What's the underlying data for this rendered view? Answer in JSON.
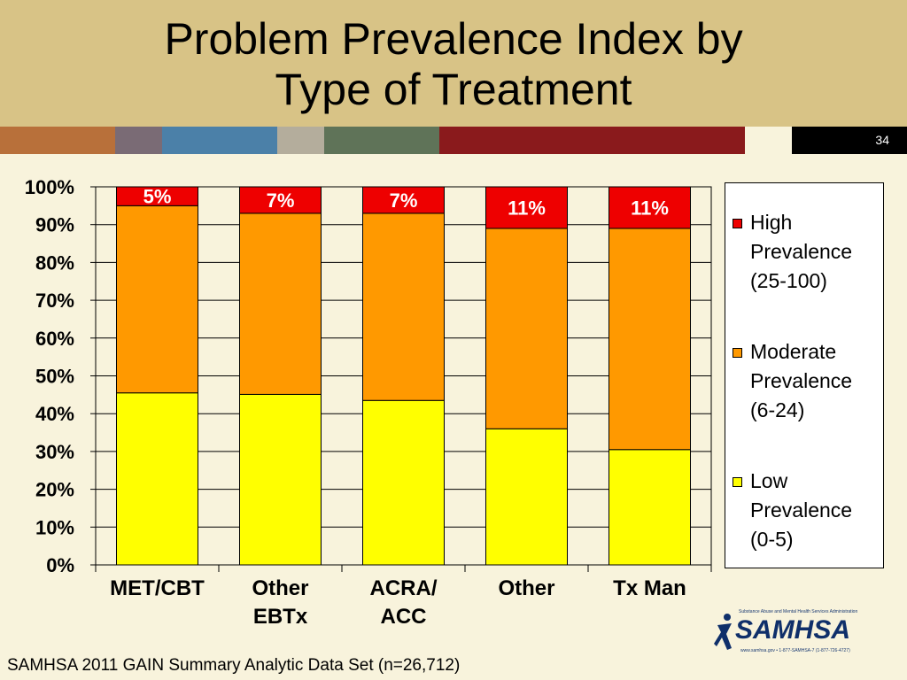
{
  "slide": {
    "title_line1": "Problem Prevalence Index by",
    "title_line2": "Type of Treatment",
    "number": "34",
    "footnote": "SAMHSA 2011 GAIN Summary Analytic Data Set (n=26,712)",
    "logo": {
      "tagline": "Substance Abuse and Mental Health Services Administration",
      "word": "SAMHSA",
      "sub": "www.samhsa.gov • 1-877-SAMHSA-7 (1-877-726-4727)"
    },
    "strip_colors": [
      "#b8703a",
      "#7a6b75",
      "#4b80a8",
      "#b4ad9c",
      "#5f7358",
      "#8a1a1c"
    ]
  },
  "chart_data": {
    "type": "bar",
    "stacked": true,
    "categories": [
      [
        "MET/CBT"
      ],
      [
        "Other",
        "EBTx"
      ],
      [
        "ACRA/",
        "ACC"
      ],
      [
        "Other"
      ],
      [
        "Tx Man"
      ]
    ],
    "series": [
      {
        "name": "Low Prevalence (0-5)",
        "color": "#ffff00",
        "values": [
          45.5,
          45.1,
          43.5,
          36.0,
          30.5
        ]
      },
      {
        "name": "Moderate Prevalence (6-24)",
        "color": "#ff9900",
        "values": [
          49.5,
          47.9,
          49.5,
          53.0,
          58.5
        ]
      },
      {
        "name": "High Prevalence (25-100)",
        "color": "#ee0000",
        "values": [
          5,
          7,
          7,
          11,
          11
        ]
      }
    ],
    "data_labels": [
      "5%",
      "7%",
      "7%",
      "11%",
      "11%"
    ],
    "legend": [
      {
        "label": "High\nPrevalence\n(25-100)",
        "color": "#ee0000"
      },
      {
        "label": "Moderate\nPrevalence\n(6-24)",
        "color": "#ff9900"
      },
      {
        "label": "Low\nPrevalence\n(0-5)",
        "color": "#ffff00"
      }
    ],
    "yticks": [
      "0%",
      "10%",
      "20%",
      "30%",
      "40%",
      "50%",
      "60%",
      "70%",
      "80%",
      "90%",
      "100%"
    ],
    "ylim": [
      0,
      100
    ],
    "grid": true,
    "legend_position": "right"
  }
}
